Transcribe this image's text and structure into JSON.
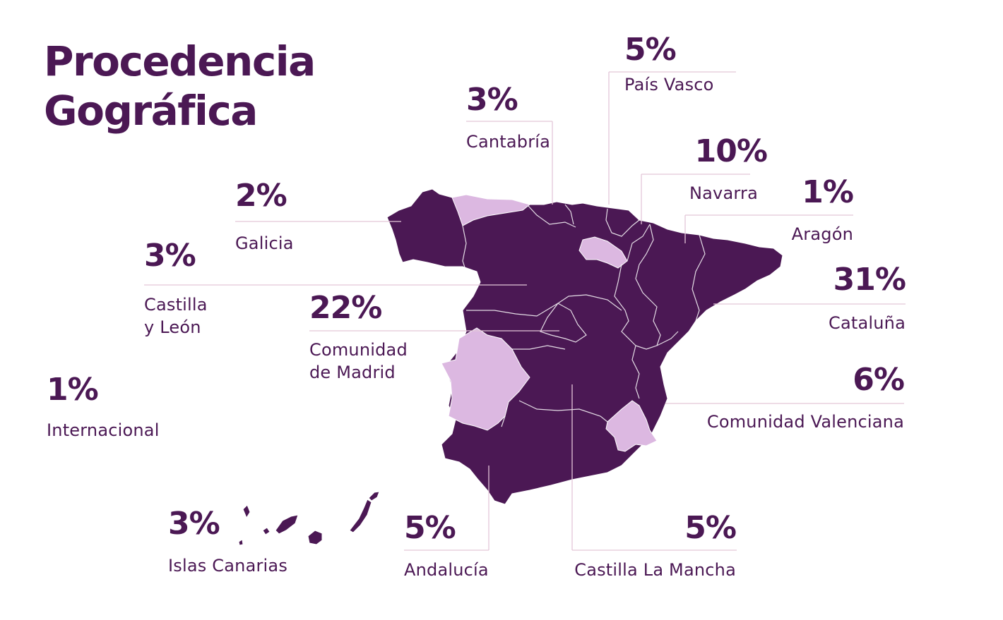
{
  "title": {
    "line1": "Procedencia",
    "line2": "Gográfica"
  },
  "colors": {
    "primary": "#4b1854",
    "light": "#dcb8e1",
    "leader_line": "#e3c6d8",
    "border": "#ffffff"
  },
  "regions": {
    "pais_vasco": {
      "pct": "5%",
      "name": "País Vasco"
    },
    "cantabria": {
      "pct": "3%",
      "name": "Cantabría"
    },
    "navarra": {
      "pct": "10%",
      "name": "Navarra"
    },
    "aragon": {
      "pct": "1%",
      "name": "Aragón"
    },
    "galicia": {
      "pct": "2%",
      "name": "Galicia"
    },
    "castilla_leon": {
      "pct": "3%",
      "name_line1": "Castilla",
      "name_line2": "y León"
    },
    "madrid": {
      "pct": "22%",
      "name_line1": "Comunidad",
      "name_line2": "de Madrid"
    },
    "cataluna": {
      "pct": "31%",
      "name": "Cataluña"
    },
    "valenciana": {
      "pct": "6%",
      "name": "Comunidad Valenciana"
    },
    "internacional": {
      "pct": "1%",
      "name": "Internacional"
    },
    "canarias": {
      "pct": "3%",
      "name": "Islas Canarias"
    },
    "andalucia": {
      "pct": "5%",
      "name": "Andalucía"
    },
    "castilla_mancha": {
      "pct": "5%",
      "name": "Castilla La Mancha"
    }
  }
}
